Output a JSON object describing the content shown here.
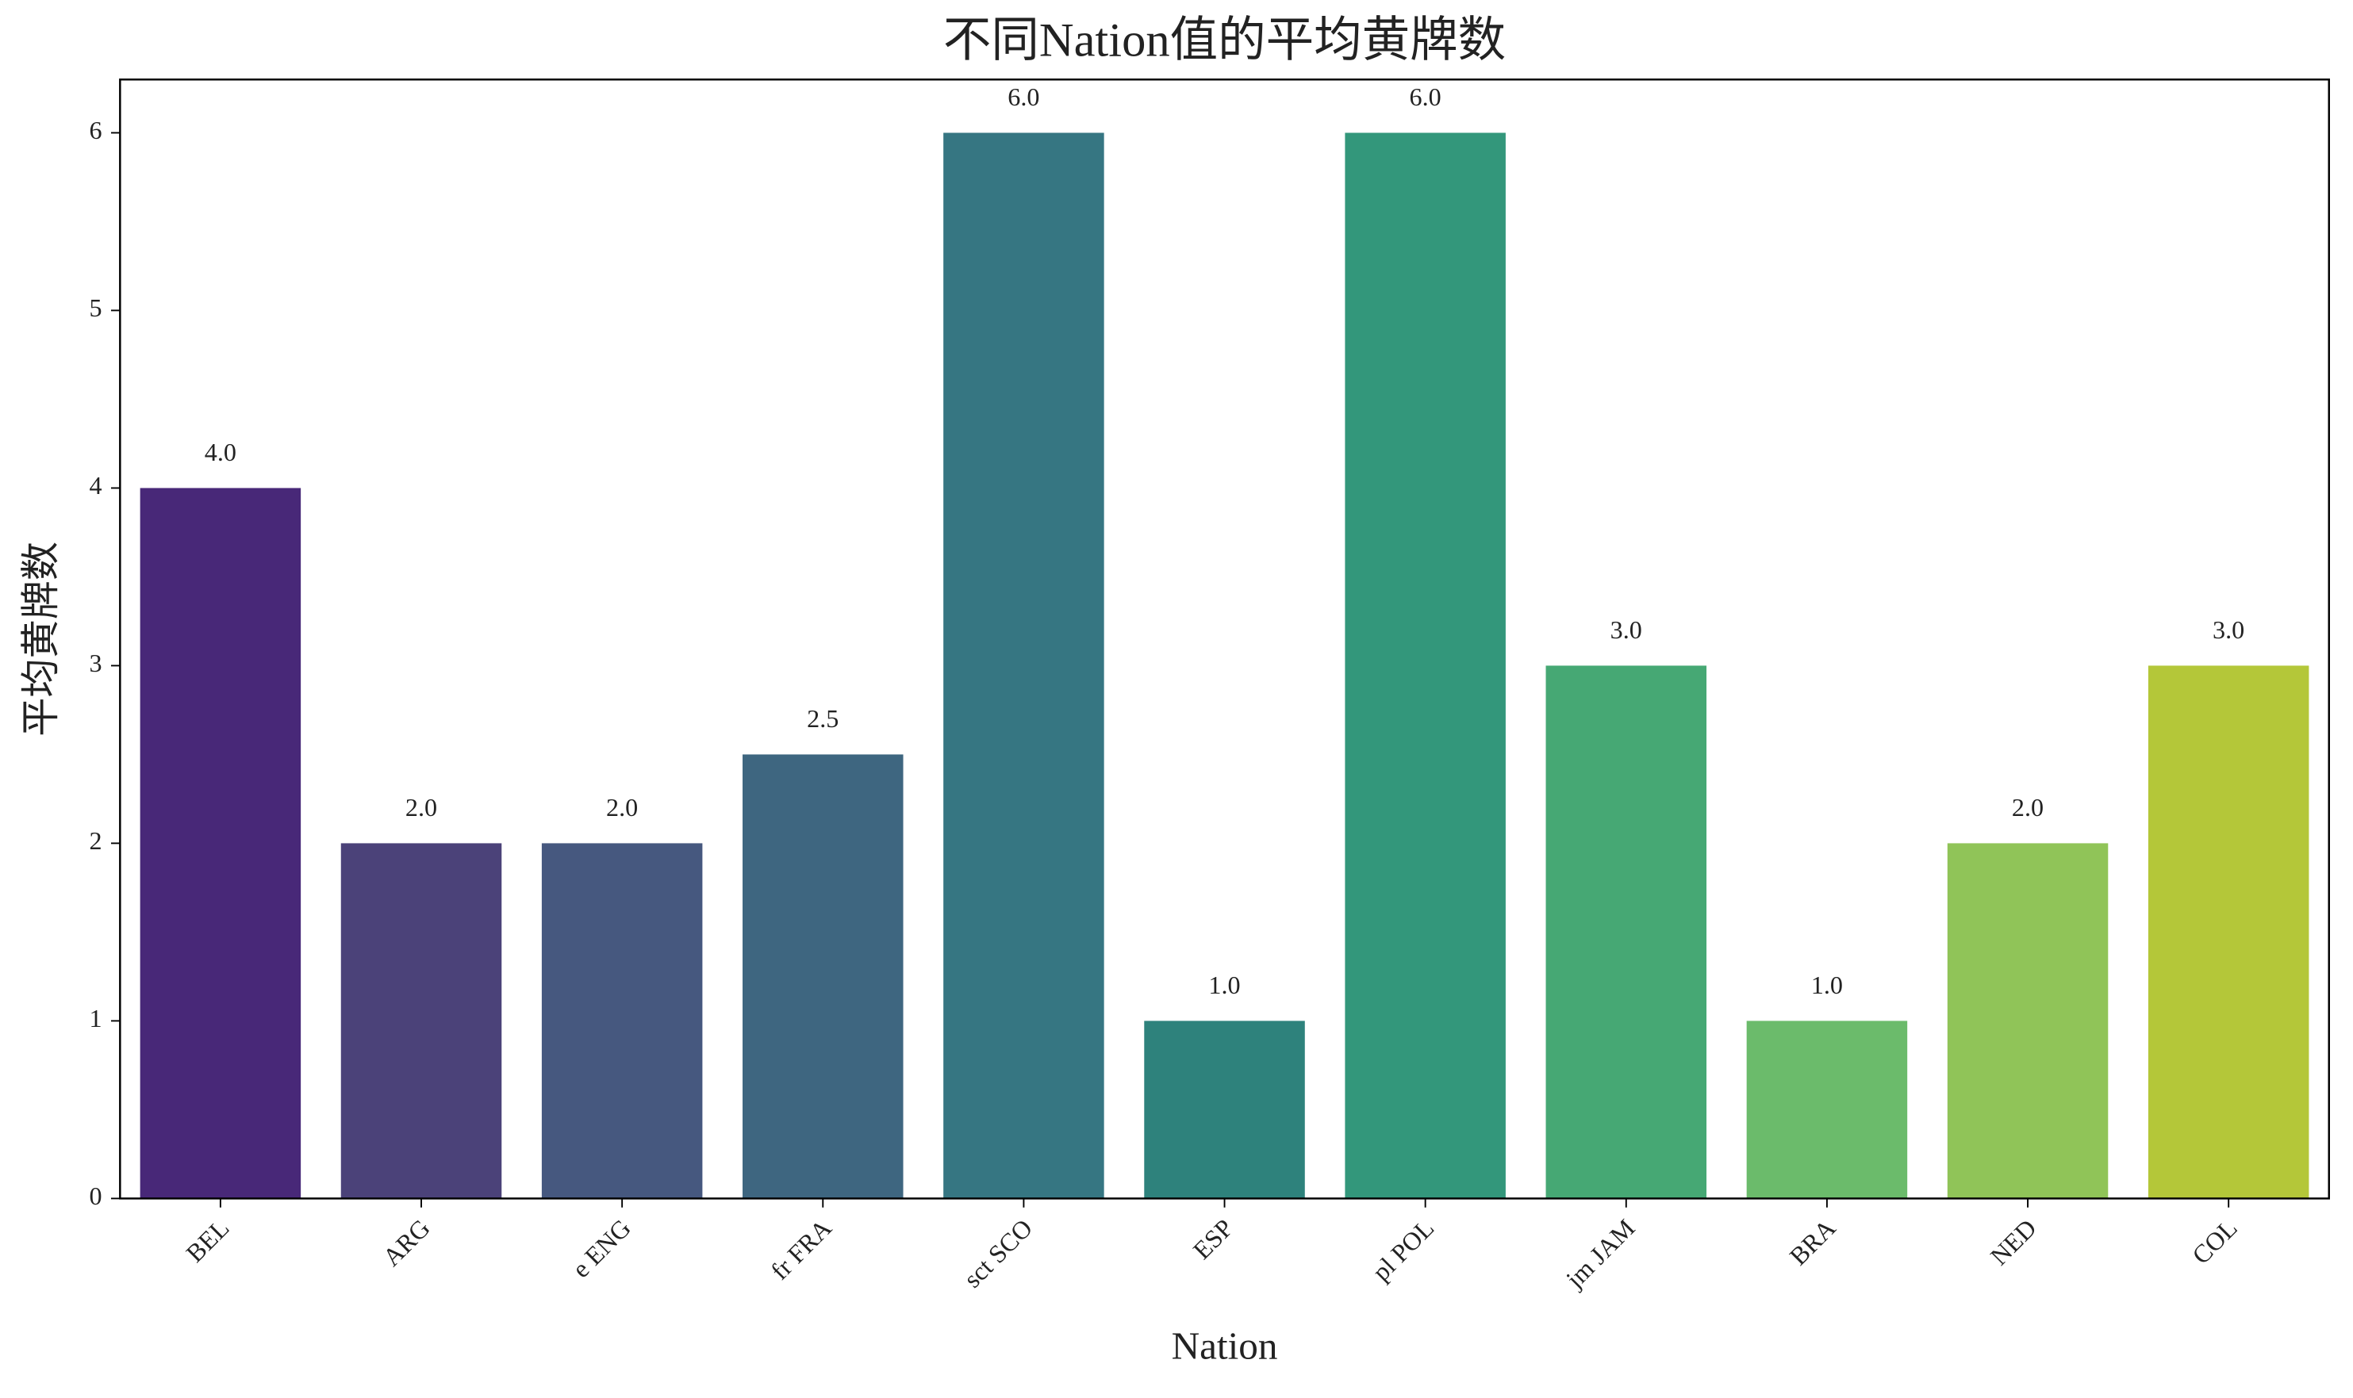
{
  "chart_data": {
    "type": "bar",
    "title": "不同Nation值的平均黄牌数",
    "x_label": "Nation",
    "y_label": "平均黄牌数",
    "categories": [
      "BEL",
      "ARG",
      "e ENG",
      "fr FRA",
      "sct SCO",
      "ESP",
      "pl POL",
      "jm JAM",
      "BRA",
      "NED",
      "COL"
    ],
    "values": [
      4,
      2,
      2,
      2.5,
      6,
      1,
      6,
      3,
      1,
      2,
      3
    ],
    "value_labels": [
      "4.0",
      "2.0",
      "2.0",
      "2.5",
      "6.0",
      "1.0",
      "6.0",
      "3.0",
      "1.0",
      "2.0",
      "3.0"
    ],
    "colors": [
      "#482878",
      "#4b4279",
      "#46587f",
      "#3e6680",
      "#367682",
      "#2e827c",
      "#33977b",
      "#46a874",
      "#6bbb6b",
      "#90c458",
      "#b4c739"
    ],
    "ylim": [
      0,
      6.3
    ],
    "yticks": [
      0,
      1,
      2,
      3,
      4,
      5,
      6
    ],
    "grid": false
  }
}
